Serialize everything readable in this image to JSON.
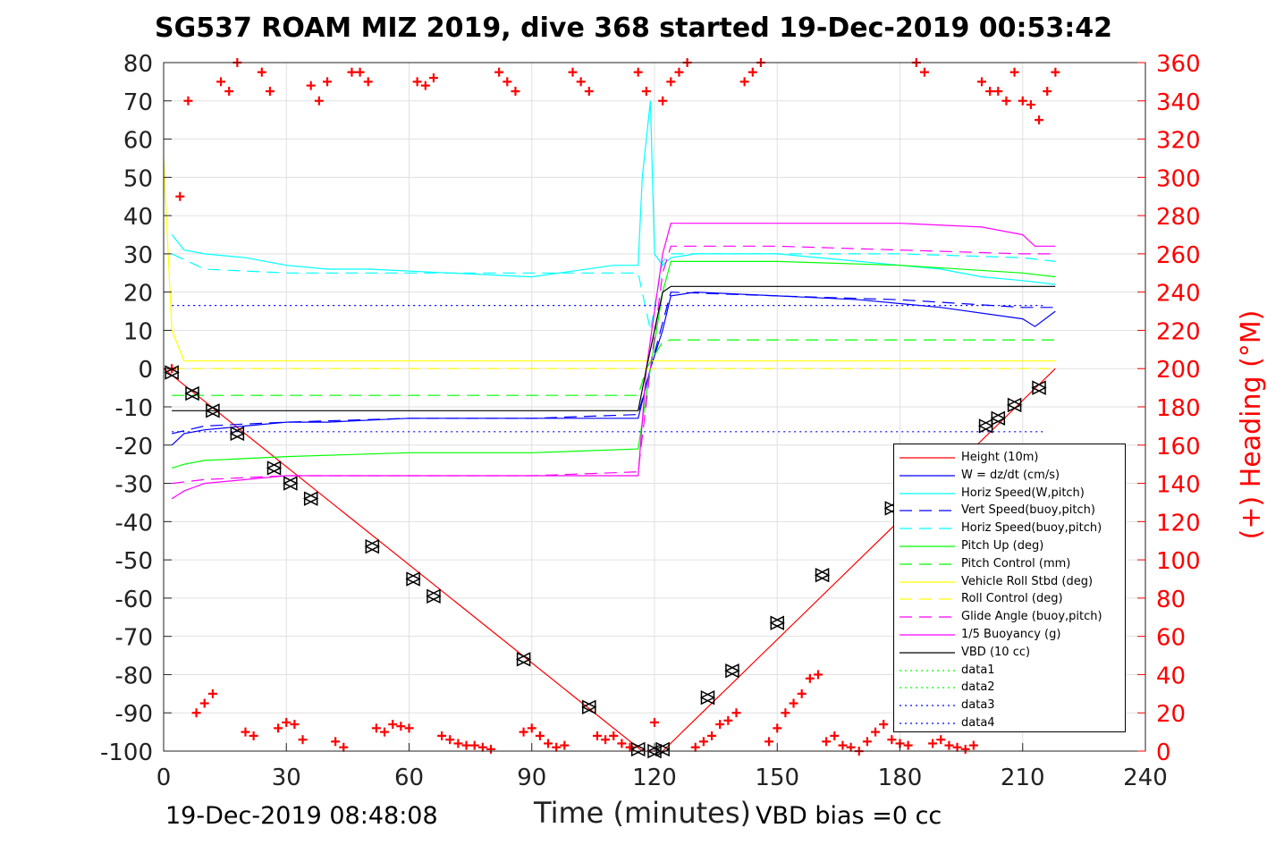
{
  "header": {
    "title": "SG537 ROAM MIZ 2019, dive 368 started 19-Dec-2019 00:53:42",
    "timestamp": "19-Dec-2019 08:48:08",
    "vbd_bias": "VBD bias =0 cc"
  },
  "chart_data": {
    "type": "line",
    "title": "SG537 ROAM MIZ 2019, dive 368 started 19-Dec-2019 00:53:42",
    "xlabel": "Time (minutes)",
    "ylabel": "",
    "ylabel_right": "(+) Heading (°M)",
    "xlim": [
      0,
      240
    ],
    "ylim": [
      -100,
      80
    ],
    "ylim_right": [
      0,
      360
    ],
    "xticks": [
      0,
      30,
      60,
      90,
      120,
      150,
      180,
      210,
      240
    ],
    "yticks": [
      80,
      70,
      60,
      50,
      40,
      30,
      20,
      10,
      0,
      -10,
      -20,
      -30,
      -40,
      -50,
      -60,
      -70,
      -80,
      -90,
      -100
    ],
    "yticks_right": [
      360,
      340,
      320,
      300,
      280,
      260,
      240,
      220,
      200,
      180,
      160,
      140,
      120,
      100,
      80,
      60,
      40,
      20,
      0
    ],
    "grid": true,
    "legend_position": "bottom-right",
    "series": [
      {
        "name": "Height (10m)",
        "color": "#ff0000",
        "style": "solid",
        "x": [
          0,
          117,
          122,
          218
        ],
        "y": [
          0,
          -100,
          -100,
          0
        ]
      },
      {
        "name": "W = dz/dt (cm/s)",
        "color": "#0000ff",
        "style": "solid",
        "x": [
          2,
          5,
          10,
          20,
          30,
          40,
          60,
          80,
          100,
          116,
          119,
          122,
          124,
          130,
          150,
          170,
          190,
          210,
          213,
          218
        ],
        "y": [
          -20,
          -17,
          -16,
          -15,
          -14,
          -14,
          -13,
          -13,
          -13,
          -13,
          0,
          10,
          19,
          20,
          19,
          18,
          16,
          13,
          11,
          15
        ]
      },
      {
        "name": "Horiz Speed(W,pitch)",
        "color": "#00ffff",
        "style": "solid",
        "x": [
          2,
          5,
          10,
          20,
          30,
          40,
          50,
          70,
          90,
          110,
          116,
          117,
          119,
          120,
          122,
          124,
          130,
          150,
          170,
          190,
          200,
          210,
          218
        ],
        "y": [
          35,
          31,
          30,
          29,
          27,
          26,
          26,
          25,
          24,
          27,
          27,
          50,
          70,
          30,
          27,
          29,
          30,
          30,
          28,
          26,
          24,
          23,
          22
        ]
      },
      {
        "name": "Vert Speed(buoy,pitch)",
        "color": "#0000ff",
        "style": "dashed",
        "x": [
          2,
          10,
          30,
          60,
          90,
          116,
          119,
          122,
          124,
          150,
          180,
          210,
          218
        ],
        "y": [
          -17,
          -15,
          -14,
          -13,
          -13,
          -12,
          0,
          12,
          20,
          19,
          18,
          16,
          16
        ]
      },
      {
        "name": "Horiz Speed(buoy,pitch)",
        "color": "#00ffff",
        "style": "dashed",
        "x": [
          2,
          10,
          30,
          60,
          90,
          116,
          119,
          122,
          124,
          150,
          180,
          210,
          218
        ],
        "y": [
          30,
          26,
          25,
          25,
          25,
          25,
          10,
          28,
          30,
          30,
          30,
          29,
          28
        ]
      },
      {
        "name": "Pitch Up (deg)",
        "color": "#00ff00",
        "style": "solid",
        "x": [
          2,
          5,
          10,
          30,
          60,
          90,
          116,
          119,
          122,
          124,
          150,
          180,
          210,
          218
        ],
        "y": [
          -26,
          -25,
          -24,
          -23,
          -22,
          -22,
          -21,
          0,
          20,
          28,
          28,
          27,
          25,
          24
        ]
      },
      {
        "name": "Pitch Control (mm)",
        "color": "#00ff00",
        "style": "dashed",
        "x": [
          2,
          116,
          118,
          122,
          124,
          218
        ],
        "y": [
          -7,
          -7,
          0,
          7,
          7.5,
          7.5
        ]
      },
      {
        "name": "Vehicle Roll Stbd (deg)",
        "color": "#ffff00",
        "style": "solid",
        "x": [
          0,
          2,
          5,
          10,
          30,
          60,
          90,
          116,
          120,
          130,
          150,
          180,
          210,
          218
        ],
        "y": [
          55,
          10,
          2,
          2,
          2,
          2,
          2,
          2,
          2,
          2,
          2,
          2,
          2,
          2
        ]
      },
      {
        "name": "Roll Control (deg)",
        "color": "#ffff00",
        "style": "dashed",
        "x": [
          2,
          218
        ],
        "y": [
          0,
          0
        ]
      },
      {
        "name": "Glide Angle (buoy,pitch)",
        "color": "#ff00ff",
        "style": "dashed",
        "x": [
          2,
          10,
          30,
          60,
          90,
          116,
          119,
          122,
          124,
          150,
          180,
          210,
          218
        ],
        "y": [
          -30,
          -29,
          -28,
          -28,
          -28,
          -27,
          0,
          25,
          32,
          32,
          31,
          30,
          30
        ]
      },
      {
        "name": "1/5 Buoyancy (g)",
        "color": "#ff00ff",
        "style": "solid",
        "x": [
          2,
          5,
          10,
          30,
          60,
          90,
          116,
          118,
          122,
          124,
          150,
          180,
          200,
          210,
          213,
          218
        ],
        "y": [
          -34,
          -32,
          -30,
          -28,
          -28,
          -28,
          -28,
          0,
          30,
          38,
          38,
          38,
          37,
          35,
          32,
          32
        ]
      },
      {
        "name": "VBD (10 cc)",
        "color": "#000000",
        "style": "solid",
        "x": [
          2,
          116,
          118,
          122,
          124,
          218
        ],
        "y": [
          -11,
          -11,
          0,
          20,
          21.5,
          21.5
        ]
      },
      {
        "name": "data1",
        "color": "#00ff00",
        "style": "dotted",
        "x": [],
        "y": []
      },
      {
        "name": "data2",
        "color": "#00ff00",
        "style": "dotted",
        "x": [],
        "y": []
      },
      {
        "name": "data3",
        "color": "#0000ff",
        "style": "dotted",
        "x": [
          2,
          215
        ],
        "y": [
          16.5,
          16.5
        ]
      },
      {
        "name": "data4",
        "color": "#0000ff",
        "style": "dotted",
        "x": [
          2,
          215
        ],
        "y": [
          -16.5,
          -16.5
        ]
      }
    ],
    "heading_points": {
      "name": "Heading",
      "color": "#ff0000",
      "marker": "+",
      "axis": "right",
      "x": [
        2,
        4,
        6,
        8,
        10,
        12,
        14,
        16,
        18,
        20,
        22,
        24,
        26,
        28,
        30,
        32,
        34,
        36,
        38,
        40,
        42,
        44,
        46,
        48,
        50,
        52,
        54,
        56,
        58,
        60,
        62,
        64,
        66,
        68,
        70,
        72,
        74,
        76,
        78,
        80,
        82,
        84,
        86,
        88,
        90,
        92,
        94,
        96,
        98,
        100,
        102,
        104,
        106,
        108,
        110,
        112,
        114,
        116,
        118,
        120,
        122,
        124,
        126,
        128,
        130,
        132,
        134,
        136,
        138,
        140,
        142,
        144,
        146,
        148,
        150,
        152,
        154,
        156,
        158,
        160,
        162,
        164,
        166,
        168,
        170,
        172,
        174,
        176,
        178,
        180,
        182,
        184,
        186,
        188,
        190,
        192,
        194,
        196,
        198,
        200,
        202,
        204,
        206,
        208,
        210,
        212,
        214,
        216,
        218
      ],
      "y": [
        200,
        290,
        340,
        20,
        25,
        30,
        350,
        345,
        360,
        10,
        8,
        355,
        345,
        12,
        15,
        14,
        6,
        348,
        340,
        350,
        5,
        2,
        355,
        355,
        350,
        12,
        10,
        14,
        13,
        12,
        350,
        348,
        352,
        8,
        6,
        4,
        3,
        3,
        2,
        1,
        355,
        350,
        345,
        10,
        12,
        8,
        4,
        2,
        3,
        355,
        350,
        345,
        8,
        6,
        8,
        4,
        2,
        355,
        345,
        15,
        340,
        350,
        355,
        360,
        2,
        5,
        8,
        14,
        16,
        20,
        350,
        355,
        360,
        5,
        12,
        20,
        25,
        30,
        38,
        40,
        5,
        8,
        3,
        2,
        0,
        5,
        10,
        14,
        6,
        4,
        3,
        360,
        355,
        4,
        6,
        3,
        2,
        1,
        3,
        350,
        345,
        345,
        340,
        355,
        340,
        338,
        330,
        345,
        355
      ]
    },
    "depth_markers": {
      "marker": "triangle",
      "color": "#000000",
      "x": [
        2,
        7,
        12,
        18,
        27,
        31,
        36,
        51,
        61,
        66,
        88,
        104,
        116,
        120,
        122,
        133,
        139,
        150,
        161,
        178,
        201,
        204,
        208,
        214
      ],
      "y": [
        -1,
        -6.5,
        -11,
        -17,
        -26,
        -30,
        -34,
        -46.5,
        -55,
        -59.5,
        -76,
        -88.5,
        -99.5,
        -100,
        -99.5,
        -86,
        -79,
        -66.5,
        -54,
        -36.5,
        -15,
        -13,
        -9.5,
        -5
      ]
    }
  }
}
